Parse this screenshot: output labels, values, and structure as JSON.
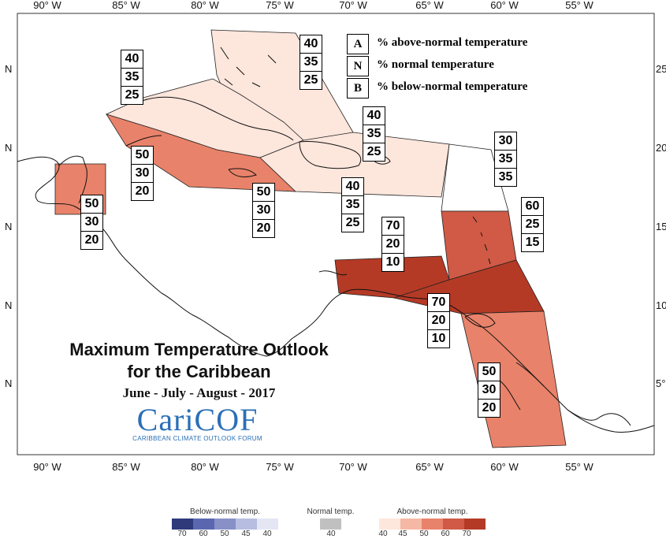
{
  "map": {
    "lon_labels": [
      "90° W",
      "85° W",
      "80° W",
      "75° W",
      "70° W",
      "65° W",
      "60° W",
      "55° W"
    ],
    "lat_labels_left": [
      "N",
      "N",
      "N",
      "N",
      "N"
    ],
    "lat_labels_right": [
      "25",
      "20",
      "15",
      "10",
      "5°"
    ]
  },
  "legend": {
    "items": [
      {
        "key": "A",
        "text": "% above-normal temperature"
      },
      {
        "key": "N",
        "text": "% normal temperature"
      },
      {
        "key": "B",
        "text": "% below-normal temperature"
      }
    ]
  },
  "title": {
    "line1": "Maximum Temperature Outlook",
    "line2": "for the Caribbean",
    "subtitle": "June - July - August - 2017"
  },
  "logo": {
    "main": "CariCOF",
    "sub": "CARIBBEAN CLIMATE OUTLOOK FORUM"
  },
  "regions": [
    {
      "name": "bahamas",
      "above": "40",
      "normal": "35",
      "below": "25"
    },
    {
      "name": "cuba",
      "above": "40",
      "normal": "35",
      "below": "25"
    },
    {
      "name": "cayman",
      "above": "50",
      "normal": "30",
      "below": "20"
    },
    {
      "name": "jamaica",
      "above": "50",
      "normal": "30",
      "below": "20"
    },
    {
      "name": "belize",
      "above": "50",
      "normal": "30",
      "below": "20"
    },
    {
      "name": "hispaniola-south",
      "above": "40",
      "normal": "35",
      "below": "25"
    },
    {
      "name": "hispaniola-puerto-rico",
      "above": "40",
      "normal": "35",
      "below": "25"
    },
    {
      "name": "leeward-islands",
      "above": "30",
      "normal": "35",
      "below": "35"
    },
    {
      "name": "windward-islands",
      "above": "60",
      "normal": "25",
      "below": "15"
    },
    {
      "name": "abc-islands",
      "above": "70",
      "normal": "20",
      "below": "10"
    },
    {
      "name": "trinidad",
      "above": "70",
      "normal": "20",
      "below": "10"
    },
    {
      "name": "guianas",
      "above": "50",
      "normal": "30",
      "below": "20"
    }
  ],
  "colors": {
    "above_40": "#fde6dc",
    "above_50": "#e9826a",
    "above_60": "#d05a45",
    "above_70": "#b43a26"
  },
  "scale": {
    "below": {
      "title": "Below-normal temp.",
      "ticks": [
        "70",
        "60",
        "50",
        "45",
        "40"
      ],
      "colors": [
        "#2e3a7a",
        "#5a67b0",
        "#8890c8",
        "#b7bde0",
        "#e4e7f3"
      ]
    },
    "normal": {
      "title": "Normal temp.",
      "ticks": [
        "40"
      ],
      "colors": [
        "#c0c0c0"
      ]
    },
    "above": {
      "title": "Above-normal temp.",
      "ticks": [
        "40",
        "45",
        "50",
        "60",
        "70"
      ],
      "colors": [
        "#fde6dc",
        "#f5b8a4",
        "#e9826a",
        "#d05a45",
        "#b43a26"
      ]
    }
  }
}
